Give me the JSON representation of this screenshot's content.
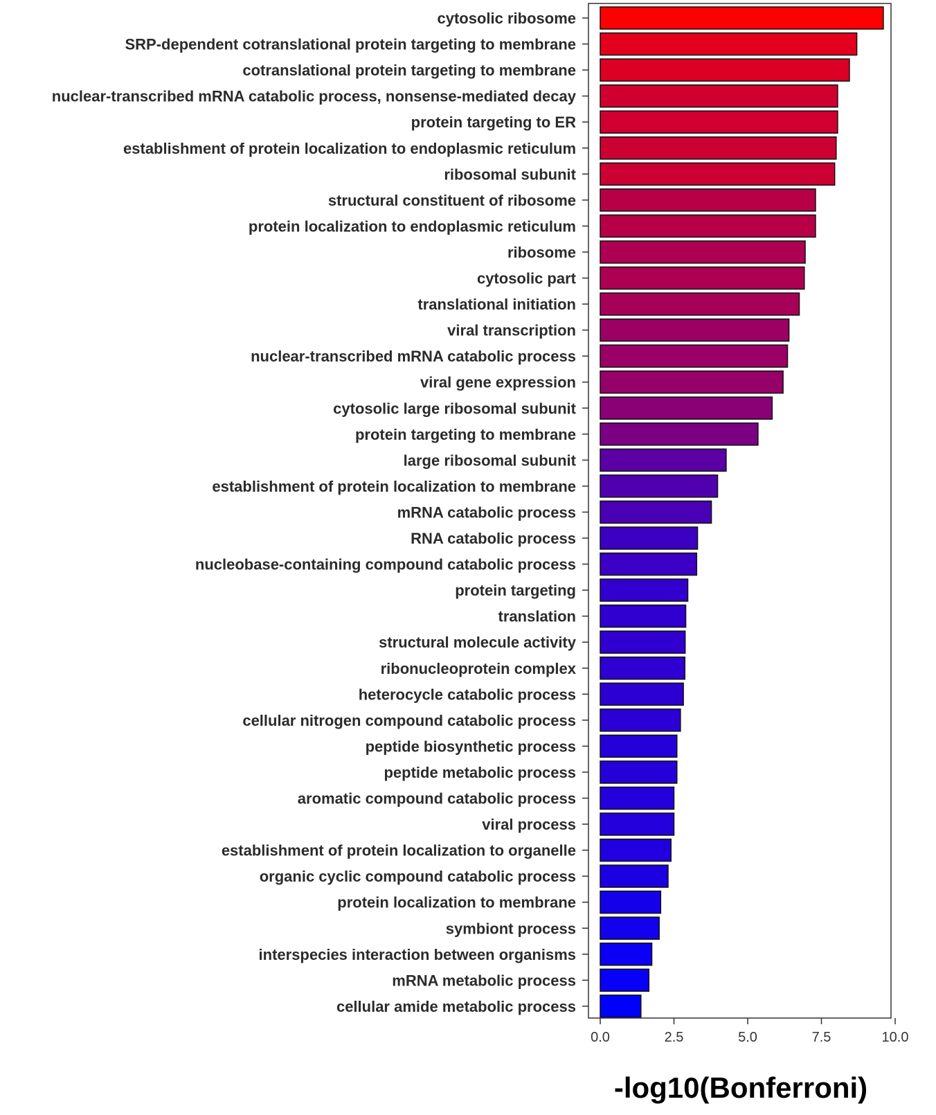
{
  "chart_data": {
    "type": "bar",
    "orientation": "horizontal",
    "title": "",
    "xlabel": "-log10(Bonferroni)",
    "ylabel": "",
    "xlim": [
      0,
      10
    ],
    "xticks": [
      0,
      2.5,
      5,
      7.5,
      10
    ],
    "xtick_labels": [
      "0.0",
      "2.5",
      "5.0",
      "7.5",
      "10.0"
    ],
    "grid": false,
    "legend": null,
    "color_scale": {
      "low": "#0000ff",
      "high": "#ff0000"
    },
    "categories": [
      "cytosolic ribosome",
      "SRP-dependent cotranslational protein targeting to membrane",
      "cotranslational protein targeting to membrane",
      "nuclear-transcribed mRNA catabolic process, nonsense-mediated decay",
      "protein targeting to ER",
      "establishment of protein localization to endoplasmic reticulum",
      "ribosomal subunit",
      "structural constituent of ribosome",
      "protein localization to endoplasmic reticulum",
      "ribosome",
      "cytosolic part",
      "translational initiation",
      "viral transcription",
      "nuclear-transcribed mRNA catabolic process",
      "viral gene expression",
      "cytosolic large ribosomal subunit",
      "protein targeting to membrane",
      "large ribosomal subunit",
      "establishment of protein localization to membrane",
      "mRNA catabolic process",
      "RNA catabolic process",
      "nucleobase-containing compound catabolic process",
      "protein targeting",
      "translation",
      "structural molecule activity",
      "ribonucleoprotein complex",
      "heterocycle catabolic process",
      "cellular nitrogen compound catabolic process",
      "peptide biosynthetic process",
      "peptide metabolic process",
      "aromatic compound catabolic process",
      "viral process",
      "establishment of protein localization to organelle",
      "organic cyclic compound catabolic process",
      "protein localization to membrane",
      "symbiont process",
      "interspecies interaction between organisms",
      "mRNA metabolic process",
      "cellular amide metabolic process"
    ],
    "values": [
      9.6,
      8.7,
      8.45,
      8.05,
      8.05,
      8.0,
      7.95,
      7.3,
      7.3,
      6.95,
      6.92,
      6.75,
      6.4,
      6.35,
      6.2,
      5.83,
      5.35,
      4.27,
      3.98,
      3.77,
      3.3,
      3.27,
      2.97,
      2.9,
      2.88,
      2.87,
      2.82,
      2.72,
      2.6,
      2.6,
      2.5,
      2.5,
      2.4,
      2.3,
      2.05,
      2.0,
      1.75,
      1.65,
      1.38
    ]
  }
}
